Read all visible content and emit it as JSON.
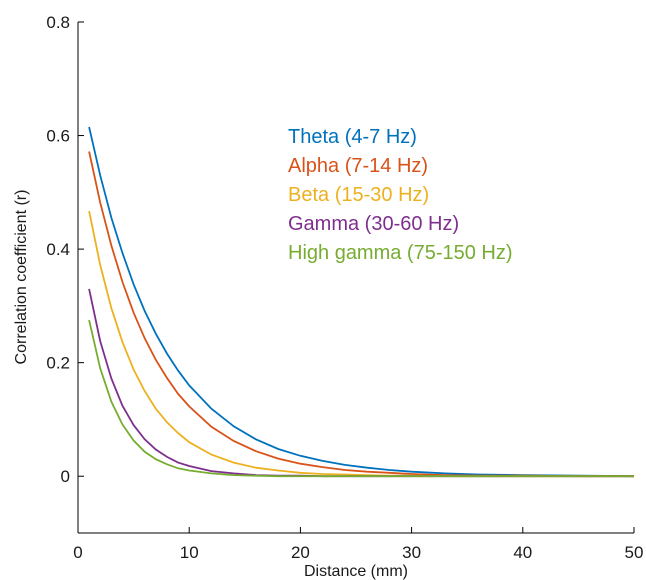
{
  "chart_data": {
    "type": "line",
    "title": "",
    "xlabel": "Distance (mm)",
    "ylabel": "Correlation coefficient (r)",
    "xlim": [
      0,
      50
    ],
    "ylim": [
      -0.1,
      0.8
    ],
    "xticks": [
      0,
      10,
      20,
      30,
      40,
      50
    ],
    "xtick_labels": [
      "0",
      "10",
      "20",
      "30",
      "40",
      "50"
    ],
    "yticks": [
      0,
      0.2,
      0.4,
      0.6,
      0.8
    ],
    "ytick_labels": [
      "0",
      "0.2",
      "0.4",
      "0.6",
      "0.8"
    ],
    "grid": false,
    "legend_position": "top-center",
    "x": [
      1,
      2,
      3,
      4,
      5,
      6,
      7,
      8,
      9,
      10,
      12,
      14,
      16,
      18,
      20,
      22,
      24,
      26,
      28,
      30,
      33,
      36,
      40,
      45,
      50
    ],
    "series": [
      {
        "name": "Theta (4-7 Hz)",
        "color": "#0072bd",
        "values": [
          0.615,
          0.53,
          0.455,
          0.393,
          0.338,
          0.291,
          0.251,
          0.216,
          0.186,
          0.16,
          0.119,
          0.088,
          0.065,
          0.048,
          0.036,
          0.027,
          0.02,
          0.015,
          0.011,
          0.008,
          0.005,
          0.003,
          0.002,
          0.001,
          0.0
        ]
      },
      {
        "name": "Alpha (7-14 Hz)",
        "color": "#d95319",
        "values": [
          0.572,
          0.482,
          0.406,
          0.342,
          0.288,
          0.243,
          0.205,
          0.173,
          0.145,
          0.123,
          0.087,
          0.062,
          0.044,
          0.031,
          0.022,
          0.016,
          0.011,
          0.008,
          0.006,
          0.004,
          0.002,
          0.001,
          0.001,
          0.0,
          0.0
        ]
      },
      {
        "name": "Beta (15-30 Hz)",
        "color": "#edb120",
        "values": [
          0.467,
          0.372,
          0.296,
          0.236,
          0.188,
          0.15,
          0.119,
          0.095,
          0.076,
          0.06,
          0.038,
          0.024,
          0.015,
          0.01,
          0.006,
          0.004,
          0.003,
          0.002,
          0.001,
          0.001,
          0.0,
          0.0,
          0.0,
          0.0,
          0.0
        ]
      },
      {
        "name": "Gamma (30-60 Hz)",
        "color": "#7e2f8e",
        "values": [
          0.33,
          0.238,
          0.172,
          0.124,
          0.09,
          0.065,
          0.047,
          0.034,
          0.024,
          0.018,
          0.009,
          0.005,
          0.002,
          0.001,
          0.001,
          0.0,
          0.0,
          0.0,
          0.0,
          0.0,
          0.0,
          0.0,
          0.0,
          0.0,
          0.0
        ]
      },
      {
        "name": "High gamma (75-150 Hz)",
        "color": "#77ac30",
        "values": [
          0.275,
          0.19,
          0.131,
          0.091,
          0.063,
          0.043,
          0.03,
          0.021,
          0.014,
          0.01,
          0.005,
          0.002,
          0.001,
          0.0,
          0.0,
          0.0,
          0.0,
          0.0,
          0.0,
          0.0,
          0.0,
          0.0,
          0.0,
          0.0,
          0.0
        ]
      }
    ]
  }
}
